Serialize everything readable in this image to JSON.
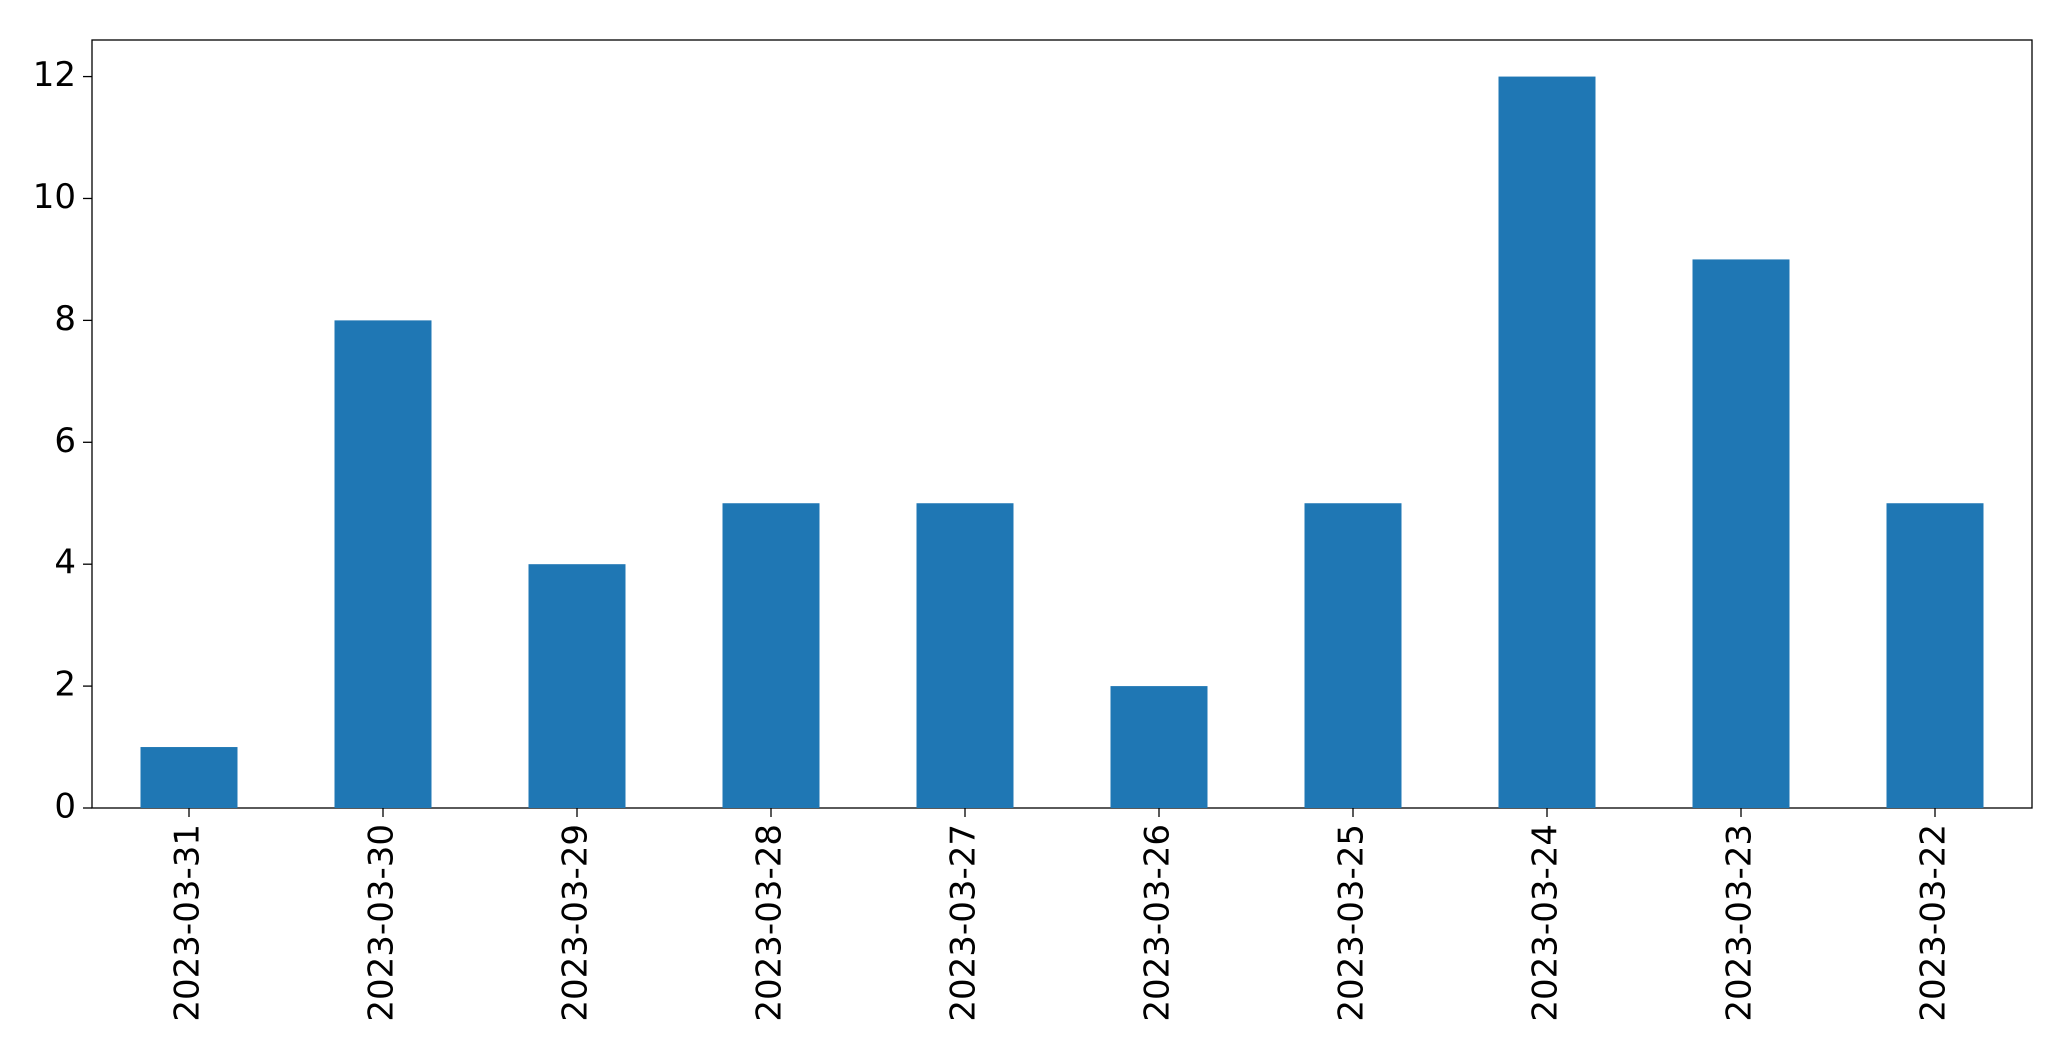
{
  "chart_data": {
    "type": "bar",
    "categories": [
      "2023-03-31",
      "2023-03-30",
      "2023-03-29",
      "2023-03-28",
      "2023-03-27",
      "2023-03-26",
      "2023-03-25",
      "2023-03-24",
      "2023-03-23",
      "2023-03-22"
    ],
    "values": [
      1,
      8,
      4,
      5,
      5,
      2,
      5,
      12,
      9,
      5
    ],
    "color": "#1f77b4",
    "ylim": [
      0,
      12.6
    ],
    "yticks": [
      0,
      2,
      4,
      6,
      8,
      10,
      12
    ],
    "grid": false
  }
}
